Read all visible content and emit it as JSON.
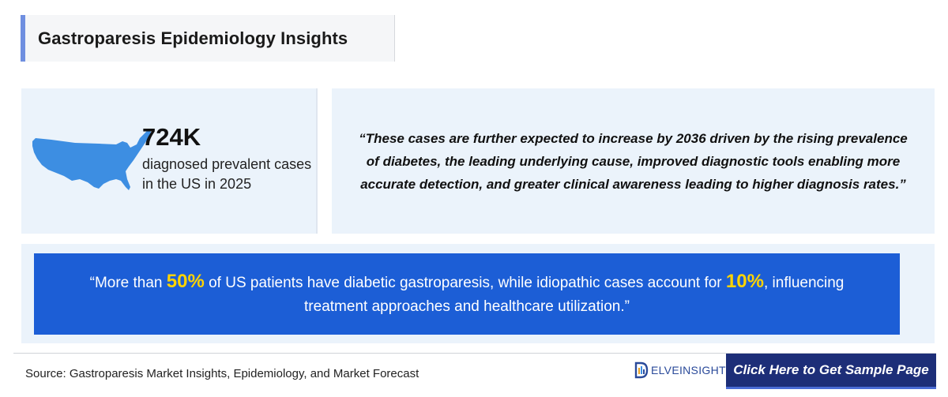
{
  "header": {
    "title": "Gastroparesis Epidemiology Insights"
  },
  "stat": {
    "value": "724K",
    "description": "diagnosed prevalent cases in the US in 2025",
    "icon": "us-map-icon"
  },
  "quote": {
    "text": "“These cases are further expected to increase by 2036 driven by the rising prevalence of diabetes, the leading underlying cause, improved diagnostic tools enabling more accurate detection, and greater clinical awareness leading to higher diagnosis rates.”"
  },
  "highlight": {
    "part1": "“More than ",
    "value1": "50%",
    "part2": " of US patients have diabetic gastroparesis, while idiopathic cases account for ",
    "value2": "10%",
    "part3": ", influencing treatment approaches and healthcare utilization.”"
  },
  "footer": {
    "source": "Source: Gastroparesis Market Insights, Epidemiology, and Market Forecast",
    "logo_text": "ELVEINSIGHT",
    "cta_label": "Click Here to Get Sample Page"
  },
  "colors": {
    "accent": "#6f8fe0",
    "card_bg": "#ebf3fb",
    "band_bg": "#1c5ed6",
    "highlight": "#ffd400",
    "cta_bg": "#1d2e78"
  }
}
